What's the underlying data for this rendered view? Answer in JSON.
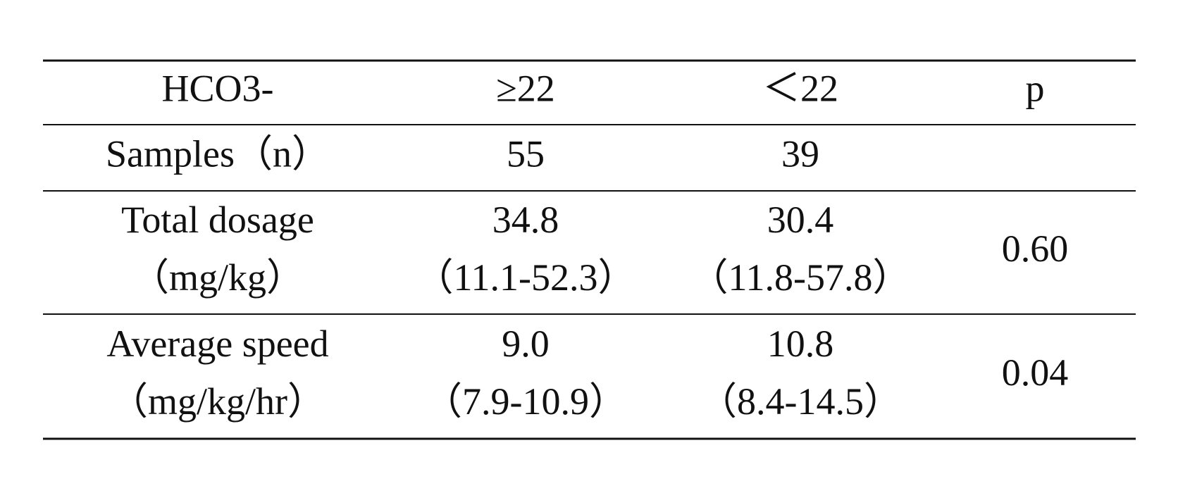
{
  "table": {
    "header": [
      "HCO3-",
      "≥22",
      "＜22",
      "p"
    ],
    "rows": [
      {
        "cells": [
          [
            "Samples（n）"
          ],
          [
            "55"
          ],
          [
            "39"
          ]
        ]
      },
      {
        "cells": [
          [
            "Total dosage",
            "（mg/kg）"
          ],
          [
            "34.8",
            "（11.1-52.3）"
          ],
          [
            "30.4",
            "（11.8-57.8）"
          ],
          [
            "0.60"
          ]
        ]
      },
      {
        "cells": [
          [
            "Average speed",
            "（mg/kg/hr）"
          ],
          [
            "9.0",
            "（7.9-10.9）"
          ],
          [
            "10.8",
            "（8.4-14.5）"
          ],
          [
            "0.04"
          ]
        ]
      }
    ]
  }
}
